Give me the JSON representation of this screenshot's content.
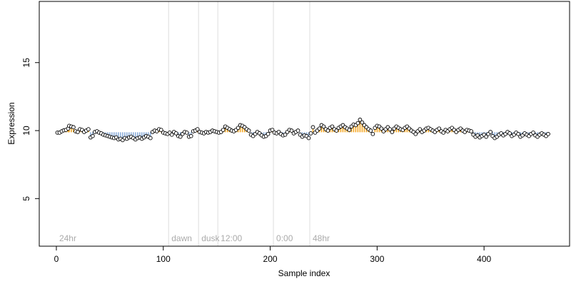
{
  "chart_data": {
    "type": "scatter",
    "title": "",
    "xlabel": "Sample index",
    "ylabel": "Expression",
    "xlim": [
      -16,
      480
    ],
    "ylim": [
      1.5,
      19.5
    ],
    "x_ticks": [
      0,
      100,
      200,
      300,
      400
    ],
    "y_ticks": [
      5,
      10,
      15
    ],
    "grid": false,
    "colors": {
      "point_fill": "#ffffff",
      "point_stroke": "#000000",
      "bar_above": "#f5a623",
      "bar_below": "#8fb0db",
      "marker_line": "#dddddd",
      "marker_label": "#aaaaaa",
      "axis": "#000000"
    },
    "baseline": 9.88,
    "x_markers": [
      {
        "x": 0,
        "label": "24hr"
      },
      {
        "x": 105,
        "label": "dawn"
      },
      {
        "x": 133,
        "label": "dusk"
      },
      {
        "x": 151,
        "label": "12:00"
      },
      {
        "x": 203,
        "label": "0:00"
      },
      {
        "x": 237,
        "label": "48hr"
      }
    ],
    "series": [
      {
        "values": [
          [
            1,
            9.85
          ],
          [
            3,
            9.85
          ],
          [
            5,
            9.95
          ],
          [
            7,
            10.02
          ],
          [
            9,
            10.05
          ],
          [
            11,
            10.15
          ],
          [
            12,
            10.35
          ],
          [
            14,
            10.3
          ],
          [
            16,
            10.25
          ],
          [
            18,
            9.95
          ],
          [
            20,
            9.9
          ],
          [
            22,
            10.1
          ],
          [
            24,
            10.05
          ],
          [
            26,
            9.9
          ],
          [
            28,
            10.0
          ],
          [
            30,
            10.1
          ],
          [
            32,
            9.5
          ],
          [
            34,
            9.6
          ],
          [
            36,
            9.9
          ],
          [
            38,
            9.95
          ],
          [
            40,
            9.85
          ],
          [
            42,
            9.8
          ],
          [
            44,
            9.7
          ],
          [
            46,
            9.65
          ],
          [
            48,
            9.6
          ],
          [
            50,
            9.55
          ],
          [
            52,
            9.5
          ],
          [
            54,
            9.45
          ],
          [
            56,
            9.5
          ],
          [
            58,
            9.35
          ],
          [
            60,
            9.4
          ],
          [
            62,
            9.3
          ],
          [
            64,
            9.45
          ],
          [
            66,
            9.4
          ],
          [
            68,
            9.5
          ],
          [
            70,
            9.55
          ],
          [
            72,
            9.45
          ],
          [
            74,
            9.35
          ],
          [
            76,
            9.45
          ],
          [
            78,
            9.5
          ],
          [
            80,
            9.4
          ],
          [
            82,
            9.5
          ],
          [
            84,
            9.6
          ],
          [
            86,
            9.55
          ],
          [
            88,
            9.45
          ],
          [
            90,
            9.9
          ],
          [
            92,
            10.0
          ],
          [
            94,
            9.95
          ],
          [
            96,
            10.1
          ],
          [
            98,
            10.05
          ],
          [
            100,
            9.85
          ],
          [
            102,
            9.8
          ],
          [
            104,
            9.75
          ],
          [
            106,
            9.85
          ],
          [
            108,
            9.7
          ],
          [
            110,
            9.9
          ],
          [
            112,
            9.8
          ],
          [
            114,
            9.6
          ],
          [
            116,
            9.55
          ],
          [
            118,
            9.75
          ],
          [
            120,
            9.9
          ],
          [
            122,
            9.85
          ],
          [
            124,
            9.55
          ],
          [
            126,
            9.6
          ],
          [
            128,
            9.95
          ],
          [
            130,
            10.0
          ],
          [
            132,
            10.1
          ],
          [
            134,
            9.9
          ],
          [
            136,
            9.85
          ],
          [
            138,
            9.8
          ],
          [
            140,
            9.9
          ],
          [
            142,
            9.85
          ],
          [
            144,
            9.9
          ],
          [
            146,
            10.0
          ],
          [
            148,
            9.95
          ],
          [
            150,
            9.9
          ],
          [
            152,
            9.85
          ],
          [
            154,
            9.9
          ],
          [
            156,
            10.05
          ],
          [
            158,
            10.3
          ],
          [
            160,
            10.2
          ],
          [
            162,
            10.1
          ],
          [
            164,
            10.0
          ],
          [
            166,
            9.95
          ],
          [
            168,
            10.05
          ],
          [
            170,
            10.2
          ],
          [
            172,
            10.4
          ],
          [
            174,
            10.35
          ],
          [
            176,
            10.25
          ],
          [
            178,
            10.1
          ],
          [
            180,
            10.0
          ],
          [
            182,
            9.7
          ],
          [
            184,
            9.6
          ],
          [
            186,
            9.75
          ],
          [
            188,
            9.9
          ],
          [
            190,
            9.8
          ],
          [
            192,
            9.65
          ],
          [
            194,
            9.55
          ],
          [
            196,
            9.6
          ],
          [
            198,
            9.75
          ],
          [
            200,
            10.0
          ],
          [
            202,
            10.05
          ],
          [
            204,
            9.85
          ],
          [
            206,
            9.8
          ],
          [
            208,
            9.9
          ],
          [
            210,
            9.75
          ],
          [
            212,
            9.65
          ],
          [
            214,
            9.7
          ],
          [
            216,
            9.9
          ],
          [
            218,
            10.05
          ],
          [
            220,
            10.0
          ],
          [
            222,
            9.8
          ],
          [
            224,
            9.9
          ],
          [
            226,
            10.0
          ],
          [
            228,
            9.7
          ],
          [
            230,
            9.55
          ],
          [
            232,
            9.65
          ],
          [
            234,
            9.6
          ],
          [
            236,
            9.45
          ],
          [
            238,
            9.8
          ],
          [
            240,
            10.25
          ],
          [
            242,
            9.85
          ],
          [
            244,
            10.0
          ],
          [
            246,
            10.15
          ],
          [
            248,
            10.4
          ],
          [
            250,
            10.3
          ],
          [
            252,
            10.1
          ],
          [
            254,
            10.0
          ],
          [
            256,
            10.2
          ],
          [
            258,
            10.3
          ],
          [
            260,
            10.1
          ],
          [
            262,
            10.0
          ],
          [
            264,
            10.2
          ],
          [
            266,
            10.3
          ],
          [
            268,
            10.4
          ],
          [
            270,
            10.25
          ],
          [
            272,
            10.15
          ],
          [
            274,
            10.05
          ],
          [
            276,
            10.3
          ],
          [
            278,
            10.45
          ],
          [
            280,
            10.4
          ],
          [
            282,
            10.55
          ],
          [
            284,
            10.8
          ],
          [
            286,
            10.6
          ],
          [
            288,
            10.4
          ],
          [
            290,
            10.25
          ],
          [
            292,
            10.1
          ],
          [
            294,
            10.0
          ],
          [
            296,
            9.75
          ],
          [
            298,
            10.2
          ],
          [
            300,
            10.35
          ],
          [
            302,
            10.3
          ],
          [
            304,
            10.15
          ],
          [
            306,
            9.95
          ],
          [
            308,
            10.1
          ],
          [
            310,
            10.25
          ],
          [
            312,
            10.1
          ],
          [
            314,
            9.9
          ],
          [
            316,
            10.15
          ],
          [
            318,
            10.3
          ],
          [
            320,
            10.2
          ],
          [
            322,
            10.1
          ],
          [
            324,
            10.05
          ],
          [
            326,
            10.2
          ],
          [
            328,
            10.3
          ],
          [
            330,
            10.15
          ],
          [
            332,
            10.0
          ],
          [
            334,
            9.9
          ],
          [
            336,
            9.75
          ],
          [
            338,
            9.95
          ],
          [
            340,
            10.1
          ],
          [
            342,
            9.9
          ],
          [
            344,
            10.0
          ],
          [
            346,
            10.15
          ],
          [
            348,
            10.2
          ],
          [
            350,
            10.1
          ],
          [
            352,
            10.0
          ],
          [
            354,
            9.9
          ],
          [
            356,
            10.05
          ],
          [
            358,
            10.15
          ],
          [
            360,
            9.95
          ],
          [
            362,
            9.85
          ],
          [
            364,
            10.05
          ],
          [
            366,
            9.95
          ],
          [
            368,
            10.1
          ],
          [
            370,
            10.2
          ],
          [
            372,
            10.05
          ],
          [
            374,
            9.9
          ],
          [
            376,
            10.05
          ],
          [
            378,
            10.15
          ],
          [
            380,
            10.0
          ],
          [
            382,
            9.9
          ],
          [
            384,
            10.05
          ],
          [
            386,
            10.0
          ],
          [
            388,
            9.95
          ],
          [
            390,
            9.7
          ],
          [
            392,
            9.55
          ],
          [
            394,
            9.65
          ],
          [
            396,
            9.5
          ],
          [
            398,
            9.6
          ],
          [
            400,
            9.7
          ],
          [
            402,
            9.55
          ],
          [
            404,
            9.75
          ],
          [
            406,
            9.9
          ],
          [
            408,
            9.6
          ],
          [
            410,
            9.45
          ],
          [
            412,
            9.55
          ],
          [
            414,
            9.7
          ],
          [
            416,
            9.8
          ],
          [
            418,
            9.65
          ],
          [
            420,
            9.75
          ],
          [
            422,
            9.9
          ],
          [
            424,
            9.8
          ],
          [
            426,
            9.6
          ],
          [
            428,
            9.7
          ],
          [
            430,
            9.85
          ],
          [
            432,
            9.75
          ],
          [
            434,
            9.55
          ],
          [
            436,
            9.65
          ],
          [
            438,
            9.8
          ],
          [
            440,
            9.7
          ],
          [
            442,
            9.6
          ],
          [
            444,
            9.75
          ],
          [
            446,
            9.85
          ],
          [
            448,
            9.65
          ],
          [
            450,
            9.55
          ],
          [
            452,
            9.7
          ],
          [
            454,
            9.8
          ],
          [
            456,
            9.7
          ],
          [
            458,
            9.6
          ],
          [
            460,
            9.75
          ]
        ]
      }
    ]
  }
}
